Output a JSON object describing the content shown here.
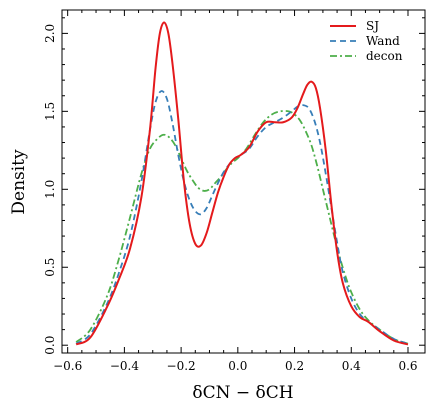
{
  "chart_data": {
    "type": "line",
    "title": "",
    "xlabel": "δCN − δCH",
    "ylabel": "Density",
    "xlim": [
      -0.62,
      0.66
    ],
    "ylim": [
      -0.05,
      2.15
    ],
    "x_ticks": [
      -0.6,
      -0.4,
      -0.2,
      0.0,
      0.2,
      0.4,
      0.6
    ],
    "x_tick_labels": [
      "−0.6",
      "−0.4",
      "−0.2",
      "0.0",
      "0.2",
      "0.4",
      "0.6"
    ],
    "y_ticks": [
      0.0,
      0.5,
      1.0,
      1.5,
      2.0
    ],
    "y_tick_labels": [
      "0.0",
      "0.5",
      "1.0",
      "1.5",
      "2.0"
    ],
    "grid": false,
    "legend_position": "top-right",
    "series": [
      {
        "name": "SJ",
        "color": "#e41a1c",
        "dash": "solid",
        "x": [
          -0.57,
          -0.52,
          -0.46,
          -0.42,
          -0.38,
          -0.34,
          -0.31,
          -0.29,
          -0.275,
          -0.26,
          -0.245,
          -0.23,
          -0.21,
          -0.19,
          -0.17,
          -0.15,
          -0.13,
          -0.11,
          -0.09,
          -0.07,
          -0.05,
          -0.03,
          -0.01,
          0.01,
          0.04,
          0.07,
          0.1,
          0.13,
          0.16,
          0.19,
          0.21,
          0.23,
          0.245,
          0.26,
          0.275,
          0.29,
          0.31,
          0.33,
          0.35,
          0.37,
          0.4,
          0.43,
          0.46,
          0.5,
          0.55,
          0.6
        ],
        "y": [
          0.005,
          0.05,
          0.25,
          0.42,
          0.62,
          0.95,
          1.38,
          1.78,
          2.0,
          2.07,
          2.0,
          1.8,
          1.45,
          1.05,
          0.78,
          0.65,
          0.64,
          0.72,
          0.85,
          0.98,
          1.08,
          1.16,
          1.2,
          1.22,
          1.27,
          1.37,
          1.43,
          1.43,
          1.43,
          1.46,
          1.52,
          1.61,
          1.67,
          1.69,
          1.65,
          1.52,
          1.25,
          0.9,
          0.6,
          0.4,
          0.25,
          0.18,
          0.15,
          0.09,
          0.03,
          0.005
        ]
      },
      {
        "name": "Wand",
        "color": "#377eb8",
        "dash": "dashed",
        "x": [
          -0.57,
          -0.52,
          -0.46,
          -0.42,
          -0.38,
          -0.34,
          -0.31,
          -0.29,
          -0.27,
          -0.25,
          -0.23,
          -0.21,
          -0.19,
          -0.17,
          -0.15,
          -0.13,
          -0.11,
          -0.09,
          -0.07,
          -0.05,
          -0.03,
          -0.01,
          0.01,
          0.04,
          0.07,
          0.1,
          0.13,
          0.16,
          0.19,
          0.21,
          0.23,
          0.25,
          0.27,
          0.29,
          0.31,
          0.33,
          0.35,
          0.37,
          0.4,
          0.43,
          0.46,
          0.5,
          0.55,
          0.6
        ],
        "y": [
          0.01,
          0.07,
          0.27,
          0.46,
          0.7,
          1.05,
          1.38,
          1.56,
          1.63,
          1.58,
          1.42,
          1.22,
          1.05,
          0.93,
          0.86,
          0.84,
          0.88,
          0.96,
          1.04,
          1.11,
          1.16,
          1.2,
          1.22,
          1.26,
          1.34,
          1.4,
          1.43,
          1.46,
          1.5,
          1.53,
          1.54,
          1.52,
          1.44,
          1.3,
          1.1,
          0.88,
          0.66,
          0.47,
          0.3,
          0.2,
          0.15,
          0.1,
          0.04,
          0.01
        ]
      },
      {
        "name": "decon",
        "color": "#4daf4a",
        "dash": "dashdot",
        "x": [
          -0.57,
          -0.52,
          -0.46,
          -0.42,
          -0.38,
          -0.34,
          -0.31,
          -0.28,
          -0.26,
          -0.24,
          -0.22,
          -0.2,
          -0.18,
          -0.16,
          -0.14,
          -0.12,
          -0.1,
          -0.08,
          -0.06,
          -0.04,
          -0.02,
          0.0,
          0.03,
          0.06,
          0.09,
          0.12,
          0.15,
          0.18,
          0.2,
          0.22,
          0.24,
          0.26,
          0.28,
          0.3,
          0.32,
          0.34,
          0.36,
          0.38,
          0.4,
          0.43,
          0.46,
          0.5,
          0.55,
          0.6
        ],
        "y": [
          0.02,
          0.1,
          0.32,
          0.55,
          0.82,
          1.1,
          1.26,
          1.33,
          1.35,
          1.33,
          1.28,
          1.2,
          1.12,
          1.06,
          1.01,
          0.99,
          1.0,
          1.04,
          1.08,
          1.13,
          1.17,
          1.2,
          1.26,
          1.35,
          1.43,
          1.48,
          1.5,
          1.5,
          1.48,
          1.44,
          1.37,
          1.28,
          1.15,
          1.0,
          0.85,
          0.7,
          0.56,
          0.44,
          0.34,
          0.23,
          0.16,
          0.1,
          0.04,
          0.01
        ]
      }
    ]
  }
}
